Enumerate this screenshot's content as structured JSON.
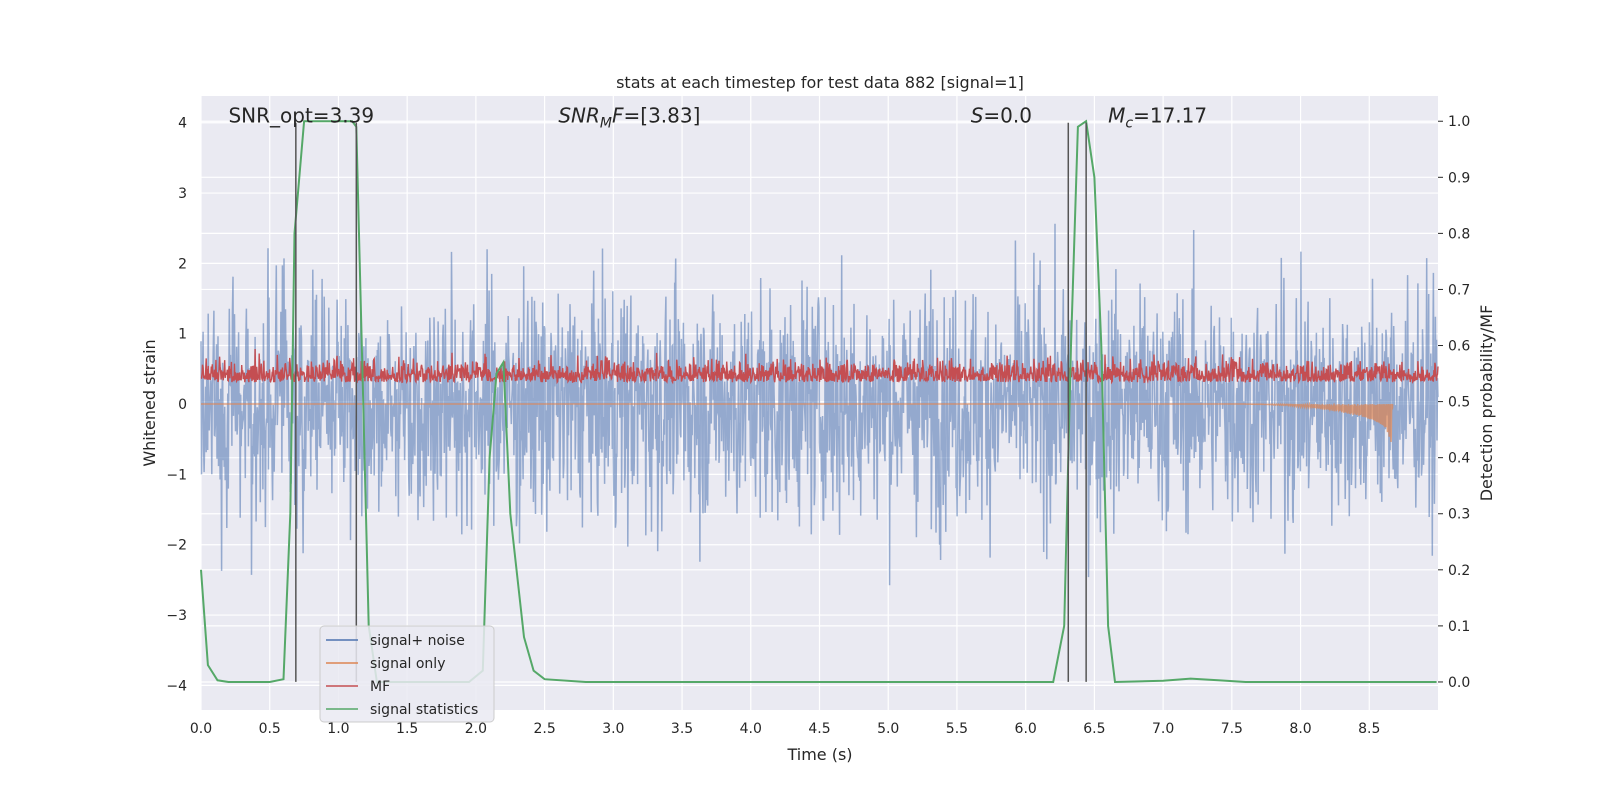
{
  "chart_data": {
    "type": "line",
    "title": "stats at each timestep for test data 882 [signal=1]",
    "xlabel": "Time (s)",
    "ylabel": "Whitened strain",
    "y2label": "Detection probability/MF",
    "xlim": [
      0.0,
      9.0
    ],
    "ylim": [
      -4.35,
      4.38
    ],
    "y2lim": [
      -0.05,
      1.045
    ],
    "x_ticks": [
      "0.0",
      "0.5",
      "1.0",
      "1.5",
      "2.0",
      "2.5",
      "3.0",
      "3.5",
      "4.0",
      "4.5",
      "5.0",
      "5.5",
      "6.0",
      "6.5",
      "7.0",
      "7.5",
      "8.0",
      "8.5"
    ],
    "y_ticks": [
      "−4",
      "−3",
      "−2",
      "−1",
      "0",
      "1",
      "2",
      "3",
      "4"
    ],
    "y2_ticks": [
      "0.0",
      "0.1",
      "0.2",
      "0.3",
      "0.4",
      "0.5",
      "0.6",
      "0.7",
      "0.8",
      "0.9",
      "1.0"
    ],
    "grid": true,
    "legend_position": "lower-left",
    "annotations": [
      {
        "parts": [
          {
            "t": "SNR_opt=3.39",
            "style": "normal"
          }
        ],
        "x": 0.2,
        "y": 4.0
      },
      {
        "parts": [
          {
            "t": "SNR",
            "style": "italic"
          },
          {
            "t": "M",
            "style": "italic-sub"
          },
          {
            "t": "F",
            "style": "italic"
          },
          {
            "t": "=[3.83]",
            "style": "normal"
          }
        ],
        "x": 2.6,
        "y": 4.0
      },
      {
        "parts": [
          {
            "t": "S",
            "style": "italic"
          },
          {
            "t": "=0.0",
            "style": "normal"
          }
        ],
        "x": 5.6,
        "y": 4.0
      },
      {
        "parts": [
          {
            "t": "M",
            "style": "italic"
          },
          {
            "t": "c",
            "style": "italic-sub"
          },
          {
            "t": "=17.17",
            "style": "normal"
          }
        ],
        "x": 6.6,
        "y": 4.0
      }
    ],
    "vertical_lines": [
      0.69,
      1.13,
      6.31,
      6.44
    ],
    "vline_range": [
      -3.95,
      4.0
    ],
    "series": [
      {
        "name": "signal+ noise",
        "color": "#4c72b0",
        "kind": "noise",
        "amplitude": 1.15
      },
      {
        "name": "signal only",
        "color": "#dd8452",
        "kind": "chirp",
        "points": [
          [
            7.6,
            0.0
          ],
          [
            7.9,
            -0.02
          ],
          [
            8.1,
            -0.06
          ],
          [
            8.3,
            -0.12
          ],
          [
            8.45,
            -0.18
          ],
          [
            8.55,
            -0.25
          ],
          [
            8.62,
            -0.33
          ],
          [
            8.66,
            -0.55
          ],
          [
            8.67,
            0.0
          ]
        ]
      },
      {
        "name": "MF",
        "color": "#c44e52",
        "kind": "mf",
        "center": 0.36,
        "amplitude": 0.16
      },
      {
        "name": "signal statistics",
        "color": "#55a868",
        "kind": "line",
        "axis": "right",
        "points": [
          [
            0.0,
            0.2
          ],
          [
            0.05,
            0.03
          ],
          [
            0.12,
            0.003
          ],
          [
            0.2,
            0.0
          ],
          [
            0.5,
            0.0
          ],
          [
            0.6,
            0.005
          ],
          [
            0.65,
            0.3
          ],
          [
            0.68,
            0.8
          ],
          [
            0.75,
            1.0
          ],
          [
            1.1,
            1.0
          ],
          [
            1.13,
            0.99
          ],
          [
            1.18,
            0.5
          ],
          [
            1.22,
            0.1
          ],
          [
            1.28,
            0.0
          ],
          [
            1.95,
            0.0
          ],
          [
            2.05,
            0.02
          ],
          [
            2.1,
            0.4
          ],
          [
            2.15,
            0.55
          ],
          [
            2.2,
            0.57
          ],
          [
            2.25,
            0.3
          ],
          [
            2.35,
            0.08
          ],
          [
            2.42,
            0.02
          ],
          [
            2.5,
            0.005
          ],
          [
            2.8,
            0.0
          ],
          [
            6.2,
            0.0
          ],
          [
            6.28,
            0.1
          ],
          [
            6.33,
            0.6
          ],
          [
            6.38,
            0.99
          ],
          [
            6.44,
            1.0
          ],
          [
            6.5,
            0.9
          ],
          [
            6.55,
            0.6
          ],
          [
            6.6,
            0.1
          ],
          [
            6.65,
            0.0
          ],
          [
            7.0,
            0.002
          ],
          [
            7.2,
            0.006
          ],
          [
            7.4,
            0.003
          ],
          [
            7.6,
            0.0
          ],
          [
            8.99,
            0.0
          ]
        ]
      }
    ]
  }
}
